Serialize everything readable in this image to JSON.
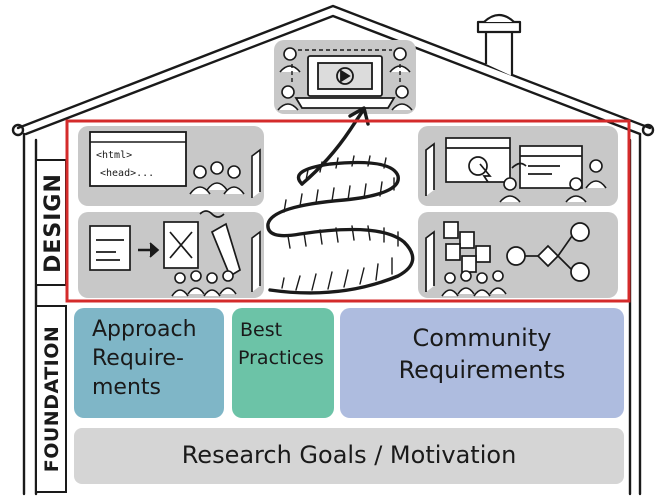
{
  "sections": {
    "design_label": "DESIGN",
    "foundation_label": "FOUNDATION"
  },
  "blocks": {
    "approach": [
      "Approach",
      "Require-",
      "ments"
    ],
    "best_practices": [
      "Best",
      "Practices"
    ],
    "community": [
      "Community",
      "Requirements"
    ],
    "research": "Research Goals / Motivation"
  },
  "code_window": {
    "line1": "<html>",
    "line2": "<head>..."
  },
  "colors": {
    "approach": "#7fb6c7",
    "best_practices": "#6cc3a7",
    "community": "#aebcdf",
    "research": "#d5d5d5",
    "panel": "#c8c8c8",
    "highlight": "#d42b2b",
    "ink": "#1a1a1a"
  }
}
